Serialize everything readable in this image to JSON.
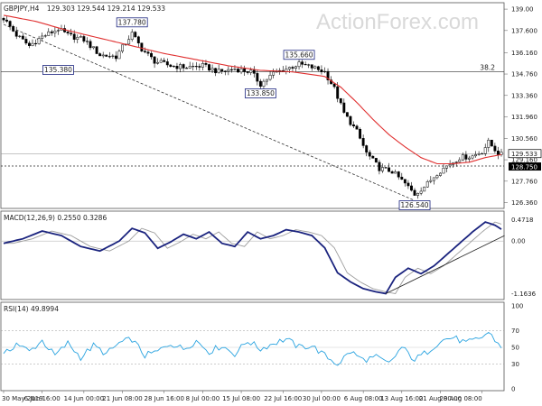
{
  "header": {
    "symbol": "GBPJPY,H4",
    "ohlc": "129.303 129.544 129.214 129.533"
  },
  "watermark": "ActionForex.com",
  "colors": {
    "candle": "#000000",
    "ma": "#e03030",
    "macd": "#1a237e",
    "signal": "#9e9e9e",
    "rsi": "#29a3e0",
    "annotation_border": "#1a237e",
    "price_tag": "#000000"
  },
  "chart_data": [
    {
      "type": "candlestick",
      "panel": "price",
      "y_ticks": [
        139.0,
        137.6,
        136.16,
        134.76,
        133.36,
        131.96,
        130.56,
        129.16,
        127.76,
        126.36
      ],
      "y_tick_labels": [
        "139.00",
        "137.600",
        "136.160",
        "134.760",
        "133.360",
        "131.960",
        "130.560",
        "129.160",
        "127.760",
        "126.360"
      ],
      "ylim": [
        126.1,
        139.3
      ],
      "current_price": 129.533,
      "current_price_label": "129.533",
      "secondary_price_label": "128.750",
      "secondary_price": 128.75,
      "fib_level": 134.9,
      "fib_label": "38.2",
      "annotations": [
        {
          "label": "137.780",
          "value": 137.78,
          "index": 40
        },
        {
          "label": "135.380",
          "value": 135.38,
          "index": 17
        },
        {
          "label": "135.660",
          "value": 135.66,
          "index": 92
        },
        {
          "label": "133.850",
          "value": 133.85,
          "index": 80
        },
        {
          "label": "126.540",
          "value": 126.54,
          "index": 128
        }
      ],
      "path_anchors": [
        [
          0,
          138.4
        ],
        [
          4,
          137.3
        ],
        [
          8,
          136.6
        ],
        [
          12,
          137.2
        ],
        [
          17,
          137.7
        ],
        [
          20,
          137.3
        ],
        [
          25,
          137.0
        ],
        [
          30,
          136.0
        ],
        [
          35,
          135.9
        ],
        [
          40,
          137.4
        ],
        [
          43,
          136.4
        ],
        [
          47,
          135.6
        ],
        [
          52,
          135.3
        ],
        [
          57,
          135.2
        ],
        [
          62,
          135.3
        ],
        [
          67,
          134.9
        ],
        [
          72,
          135.1
        ],
        [
          77,
          134.9
        ],
        [
          80,
          134.1
        ],
        [
          84,
          134.8
        ],
        [
          88,
          135.1
        ],
        [
          92,
          135.4
        ],
        [
          96,
          135.2
        ],
        [
          100,
          134.9
        ],
        [
          103,
          133.8
        ],
        [
          106,
          132.2
        ],
        [
          110,
          131.0
        ],
        [
          113,
          129.6
        ],
        [
          117,
          128.6
        ],
        [
          121,
          128.4
        ],
        [
          125,
          127.6
        ],
        [
          128,
          126.9
        ],
        [
          132,
          127.6
        ],
        [
          135,
          128.3
        ],
        [
          139,
          128.9
        ],
        [
          142,
          129.3
        ],
        [
          146,
          129.4
        ],
        [
          149,
          129.7
        ],
        [
          151,
          130.3
        ],
        [
          154,
          129.6
        ],
        [
          155,
          129.5
        ]
      ],
      "ma_anchors": [
        [
          0,
          138.6
        ],
        [
          10,
          138.2
        ],
        [
          20,
          137.6
        ],
        [
          30,
          137.1
        ],
        [
          40,
          136.6
        ],
        [
          50,
          136.1
        ],
        [
          60,
          135.7
        ],
        [
          70,
          135.3
        ],
        [
          80,
          135.0
        ],
        [
          90,
          134.9
        ],
        [
          100,
          134.6
        ],
        [
          105,
          133.9
        ],
        [
          110,
          132.9
        ],
        [
          115,
          131.8
        ],
        [
          120,
          130.8
        ],
        [
          125,
          130.0
        ],
        [
          130,
          129.3
        ],
        [
          135,
          128.9
        ],
        [
          140,
          128.9
        ],
        [
          145,
          129.0
        ],
        [
          150,
          129.3
        ],
        [
          155,
          129.5
        ]
      ],
      "trendline": [
        [
          0,
          138.0
        ],
        [
          128,
          126.5
        ]
      ],
      "bars": 156
    },
    {
      "type": "line",
      "panel": "macd",
      "title": "MACD(12,26,9) 0.2550 0.3286",
      "y_ticks": [
        0.4718,
        0.0,
        -1.1636
      ],
      "y_tick_labels": [
        "0.4718",
        "0.00",
        "-1.1636"
      ],
      "ylim": [
        -1.25,
        0.62
      ],
      "macd_anchors": [
        [
          0,
          -0.05
        ],
        [
          6,
          0.05
        ],
        [
          12,
          0.22
        ],
        [
          18,
          0.12
        ],
        [
          24,
          -0.12
        ],
        [
          30,
          -0.22
        ],
        [
          36,
          0.0
        ],
        [
          40,
          0.28
        ],
        [
          44,
          0.18
        ],
        [
          48,
          -0.16
        ],
        [
          52,
          -0.02
        ],
        [
          56,
          0.15
        ],
        [
          60,
          0.05
        ],
        [
          64,
          0.2
        ],
        [
          68,
          -0.05
        ],
        [
          72,
          -0.12
        ],
        [
          76,
          0.2
        ],
        [
          80,
          0.05
        ],
        [
          84,
          0.12
        ],
        [
          88,
          0.25
        ],
        [
          92,
          0.2
        ],
        [
          96,
          0.12
        ],
        [
          100,
          -0.15
        ],
        [
          104,
          -0.7
        ],
        [
          108,
          -0.9
        ],
        [
          112,
          -1.05
        ],
        [
          116,
          -1.12
        ],
        [
          119,
          -1.16
        ],
        [
          122,
          -0.8
        ],
        [
          126,
          -0.6
        ],
        [
          130,
          -0.72
        ],
        [
          134,
          -0.55
        ],
        [
          138,
          -0.3
        ],
        [
          142,
          -0.05
        ],
        [
          146,
          0.2
        ],
        [
          150,
          0.42
        ],
        [
          153,
          0.35
        ],
        [
          155,
          0.26
        ]
      ],
      "signal_lag": 3,
      "trendline": [
        [
          119,
          -1.16
        ],
        [
          156,
          0.12
        ]
      ]
    },
    {
      "type": "line",
      "panel": "rsi",
      "title": "RSI(14) 49.8994",
      "y_ticks": [
        100,
        70,
        50,
        30,
        0
      ],
      "y_tick_labels": [
        "100",
        "70",
        "50",
        "30",
        "0"
      ],
      "ylim": [
        0,
        100
      ],
      "rsi_anchors": [
        [
          0,
          40
        ],
        [
          4,
          55
        ],
        [
          8,
          45
        ],
        [
          12,
          58
        ],
        [
          16,
          40
        ],
        [
          20,
          55
        ],
        [
          24,
          38
        ],
        [
          28,
          52
        ],
        [
          32,
          42
        ],
        [
          36,
          55
        ],
        [
          40,
          60
        ],
        [
          44,
          40
        ],
        [
          48,
          45
        ],
        [
          52,
          55
        ],
        [
          56,
          48
        ],
        [
          60,
          58
        ],
        [
          64,
          45
        ],
        [
          68,
          52
        ],
        [
          72,
          42
        ],
        [
          76,
          58
        ],
        [
          80,
          48
        ],
        [
          84,
          55
        ],
        [
          88,
          60
        ],
        [
          92,
          50
        ],
        [
          96,
          52
        ],
        [
          100,
          40
        ],
        [
          104,
          30
        ],
        [
          108,
          45
        ],
        [
          112,
          35
        ],
        [
          116,
          38
        ],
        [
          120,
          30
        ],
        [
          124,
          50
        ],
        [
          128,
          35
        ],
        [
          132,
          45
        ],
        [
          136,
          58
        ],
        [
          140,
          62
        ],
        [
          144,
          55
        ],
        [
          148,
          60
        ],
        [
          151,
          68
        ],
        [
          155,
          50
        ]
      ]
    }
  ],
  "x_axis": {
    "labels": [
      {
        "label": "30 May 2019",
        "index": 0
      },
      {
        "label": "6 Jun 16:00",
        "index": 12
      },
      {
        "label": "14 Jun 00:00",
        "index": 25
      },
      {
        "label": "21 Jun 08:00",
        "index": 37
      },
      {
        "label": "28 Jun 16:00",
        "index": 50
      },
      {
        "label": "8 Jul 00:00",
        "index": 62
      },
      {
        "label": "15 Jul 08:00",
        "index": 74
      },
      {
        "label": "22 Jul 16:00",
        "index": 87
      },
      {
        "label": "30 Jul 00:00",
        "index": 99
      },
      {
        "label": "6 Aug 08:00",
        "index": 112
      },
      {
        "label": "13 Aug 16:00",
        "index": 124
      },
      {
        "label": "21 Aug 00:00",
        "index": 136
      },
      {
        "label": "28 Aug 08:00",
        "index": 149
      }
    ]
  }
}
